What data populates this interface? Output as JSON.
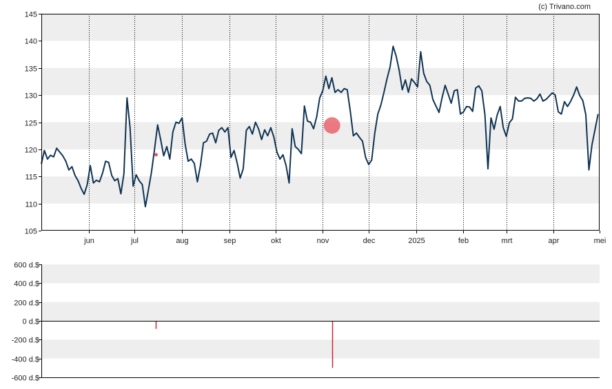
{
  "credit": "(c) Trivano.com",
  "colors": {
    "band": "#eeeeee",
    "price_line": "#0f3352",
    "marker": "#e8505b",
    "volume_bar": "#cc2233",
    "axis": "#000000",
    "zero_line": "#000000"
  },
  "chart_data": [
    {
      "type": "line",
      "name": "price",
      "ylim": [
        105,
        145
      ],
      "yticks": [
        105,
        110,
        115,
        120,
        125,
        130,
        135,
        140,
        145
      ],
      "x_domain": [
        "2024-05-01",
        "2025-05-01"
      ],
      "month_ticks": [
        {
          "date": "2024-06-01",
          "label": "jun"
        },
        {
          "date": "2024-07-01",
          "label": "jul"
        },
        {
          "date": "2024-08-01",
          "label": "aug"
        },
        {
          "date": "2024-09-01",
          "label": "sep"
        },
        {
          "date": "2024-10-01",
          "label": "okt"
        },
        {
          "date": "2024-11-01",
          "label": "nov"
        },
        {
          "date": "2024-12-01",
          "label": "dec"
        },
        {
          "date": "2025-01-01",
          "label": "2025"
        },
        {
          "date": "2025-02-01",
          "label": "feb"
        },
        {
          "date": "2025-03-01",
          "label": "mrt"
        },
        {
          "date": "2025-04-01",
          "label": "apr"
        },
        {
          "date": "2025-05-01",
          "label": "mei"
        }
      ],
      "grid": "alternating horizontal bands, dotted vertical lines at month ticks",
      "series": [
        {
          "points": [
            [
              "2024-05-01",
              117.3
            ],
            [
              "2024-05-03",
              119.8
            ],
            [
              "2024-05-05",
              118.2
            ],
            [
              "2024-05-07",
              118.9
            ],
            [
              "2024-05-09",
              118.6
            ],
            [
              "2024-05-11",
              120.2
            ],
            [
              "2024-05-13",
              119.5
            ],
            [
              "2024-05-15",
              118.8
            ],
            [
              "2024-05-17",
              117.8
            ],
            [
              "2024-05-19",
              116.2
            ],
            [
              "2024-05-21",
              116.8
            ],
            [
              "2024-05-23",
              115.2
            ],
            [
              "2024-05-25",
              114.2
            ],
            [
              "2024-05-27",
              112.8
            ],
            [
              "2024-05-29",
              111.7
            ],
            [
              "2024-05-31",
              113.5
            ],
            [
              "2024-06-02",
              117.0
            ],
            [
              "2024-06-04",
              113.8
            ],
            [
              "2024-06-06",
              114.3
            ],
            [
              "2024-06-08",
              114.0
            ],
            [
              "2024-06-10",
              115.6
            ],
            [
              "2024-06-12",
              117.8
            ],
            [
              "2024-06-14",
              117.6
            ],
            [
              "2024-06-16",
              115.2
            ],
            [
              "2024-06-18",
              114.2
            ],
            [
              "2024-06-20",
              114.6
            ],
            [
              "2024-06-22",
              111.8
            ],
            [
              "2024-06-24",
              115.5
            ],
            [
              "2024-06-26",
              129.5
            ],
            [
              "2024-06-28",
              124.0
            ],
            [
              "2024-06-30",
              113.2
            ],
            [
              "2024-07-02",
              115.3
            ],
            [
              "2024-07-04",
              114.2
            ],
            [
              "2024-07-06",
              113.5
            ],
            [
              "2024-07-08",
              109.4
            ],
            [
              "2024-07-10",
              112.5
            ],
            [
              "2024-07-12",
              115.8
            ],
            [
              "2024-07-14",
              120.0
            ],
            [
              "2024-07-16",
              124.5
            ],
            [
              "2024-07-18",
              121.8
            ],
            [
              "2024-07-20",
              118.8
            ],
            [
              "2024-07-22",
              120.5
            ],
            [
              "2024-07-24",
              118.2
            ],
            [
              "2024-07-26",
              123.2
            ],
            [
              "2024-07-28",
              125.0
            ],
            [
              "2024-07-30",
              124.8
            ],
            [
              "2024-08-01",
              125.8
            ],
            [
              "2024-08-03",
              121.0
            ],
            [
              "2024-08-05",
              117.8
            ],
            [
              "2024-08-07",
              118.2
            ],
            [
              "2024-08-09",
              117.4
            ],
            [
              "2024-08-11",
              114.0
            ],
            [
              "2024-08-13",
              117.0
            ],
            [
              "2024-08-15",
              121.2
            ],
            [
              "2024-08-17",
              121.5
            ],
            [
              "2024-08-19",
              122.8
            ],
            [
              "2024-08-21",
              123.0
            ],
            [
              "2024-08-23",
              121.2
            ],
            [
              "2024-08-25",
              123.5
            ],
            [
              "2024-08-27",
              124.0
            ],
            [
              "2024-08-29",
              123.2
            ],
            [
              "2024-08-31",
              124.0
            ],
            [
              "2024-09-02",
              118.5
            ],
            [
              "2024-09-04",
              119.8
            ],
            [
              "2024-09-06",
              117.5
            ],
            [
              "2024-09-08",
              114.7
            ],
            [
              "2024-09-10",
              116.4
            ],
            [
              "2024-09-12",
              123.5
            ],
            [
              "2024-09-14",
              124.2
            ],
            [
              "2024-09-16",
              122.8
            ],
            [
              "2024-09-18",
              125.0
            ],
            [
              "2024-09-20",
              123.8
            ],
            [
              "2024-09-22",
              121.8
            ],
            [
              "2024-09-24",
              123.6
            ],
            [
              "2024-09-26",
              122.5
            ],
            [
              "2024-09-28",
              124.0
            ],
            [
              "2024-09-30",
              122.3
            ],
            [
              "2024-10-02",
              119.5
            ],
            [
              "2024-10-04",
              118.2
            ],
            [
              "2024-10-06",
              119.0
            ],
            [
              "2024-10-08",
              117.0
            ],
            [
              "2024-10-10",
              113.8
            ],
            [
              "2024-10-12",
              123.8
            ],
            [
              "2024-10-14",
              120.5
            ],
            [
              "2024-10-16",
              120.0
            ],
            [
              "2024-10-18",
              119.2
            ],
            [
              "2024-10-20",
              128.0
            ],
            [
              "2024-10-22",
              125.2
            ],
            [
              "2024-10-24",
              125.0
            ],
            [
              "2024-10-26",
              123.8
            ],
            [
              "2024-10-28",
              126.0
            ],
            [
              "2024-10-30",
              129.5
            ],
            [
              "2024-11-01",
              130.8
            ],
            [
              "2024-11-03",
              133.5
            ],
            [
              "2024-11-05",
              131.2
            ],
            [
              "2024-11-07",
              133.2
            ],
            [
              "2024-11-09",
              130.5
            ],
            [
              "2024-11-11",
              131.0
            ],
            [
              "2024-11-13",
              130.5
            ],
            [
              "2024-11-15",
              131.2
            ],
            [
              "2024-11-17",
              131.0
            ],
            [
              "2024-11-19",
              127.0
            ],
            [
              "2024-11-21",
              122.5
            ],
            [
              "2024-11-23",
              123.0
            ],
            [
              "2024-11-25",
              122.2
            ],
            [
              "2024-11-27",
              121.5
            ],
            [
              "2024-11-29",
              118.5
            ],
            [
              "2024-12-01",
              117.2
            ],
            [
              "2024-12-03",
              118.0
            ],
            [
              "2024-12-05",
              123.0
            ],
            [
              "2024-12-07",
              126.5
            ],
            [
              "2024-12-09",
              128.2
            ],
            [
              "2024-12-11",
              130.5
            ],
            [
              "2024-12-13",
              133.0
            ],
            [
              "2024-12-15",
              135.2
            ],
            [
              "2024-12-17",
              139.0
            ],
            [
              "2024-12-19",
              137.2
            ],
            [
              "2024-12-21",
              134.5
            ],
            [
              "2024-12-23",
              131.0
            ],
            [
              "2024-12-25",
              132.8
            ],
            [
              "2024-12-27",
              130.5
            ],
            [
              "2024-12-29",
              133.0
            ],
            [
              "2024-12-31",
              132.3
            ],
            [
              "2025-01-02",
              131.5
            ],
            [
              "2025-01-04",
              138.0
            ],
            [
              "2025-01-06",
              134.0
            ],
            [
              "2025-01-08",
              132.5
            ],
            [
              "2025-01-10",
              131.8
            ],
            [
              "2025-01-12",
              129.2
            ],
            [
              "2025-01-14",
              128.0
            ],
            [
              "2025-01-16",
              126.8
            ],
            [
              "2025-01-18",
              129.5
            ],
            [
              "2025-01-20",
              131.8
            ],
            [
              "2025-01-22",
              130.2
            ],
            [
              "2025-01-24",
              128.5
            ],
            [
              "2025-01-26",
              130.8
            ],
            [
              "2025-01-28",
              131.0
            ],
            [
              "2025-01-30",
              126.5
            ],
            [
              "2025-02-01",
              126.9
            ],
            [
              "2025-02-03",
              127.9
            ],
            [
              "2025-02-05",
              127.8
            ],
            [
              "2025-02-07",
              127.0
            ],
            [
              "2025-02-09",
              131.3
            ],
            [
              "2025-02-11",
              131.7
            ],
            [
              "2025-02-13",
              130.8
            ],
            [
              "2025-02-15",
              126.4
            ],
            [
              "2025-02-17",
              116.4
            ],
            [
              "2025-02-19",
              125.8
            ],
            [
              "2025-02-21",
              123.7
            ],
            [
              "2025-02-23",
              126.3
            ],
            [
              "2025-02-25",
              127.9
            ],
            [
              "2025-02-27",
              124.0
            ],
            [
              "2025-03-01",
              122.4
            ],
            [
              "2025-03-03",
              124.9
            ],
            [
              "2025-03-05",
              125.6
            ],
            [
              "2025-03-07",
              129.6
            ],
            [
              "2025-03-09",
              128.9
            ],
            [
              "2025-03-11",
              128.9
            ],
            [
              "2025-03-13",
              129.4
            ],
            [
              "2025-03-15",
              129.5
            ],
            [
              "2025-03-17",
              129.4
            ],
            [
              "2025-03-19",
              128.9
            ],
            [
              "2025-03-21",
              129.3
            ],
            [
              "2025-03-23",
              130.2
            ],
            [
              "2025-03-25",
              128.9
            ],
            [
              "2025-03-27",
              129.2
            ],
            [
              "2025-03-29",
              129.8
            ],
            [
              "2025-03-31",
              130.4
            ],
            [
              "2025-04-02",
              130.0
            ],
            [
              "2025-04-04",
              126.9
            ],
            [
              "2025-04-06",
              126.5
            ],
            [
              "2025-04-08",
              128.8
            ],
            [
              "2025-04-10",
              127.9
            ],
            [
              "2025-04-12",
              128.8
            ],
            [
              "2025-04-14",
              130.0
            ],
            [
              "2025-04-16",
              131.5
            ],
            [
              "2025-04-18",
              129.9
            ],
            [
              "2025-04-20",
              129.0
            ],
            [
              "2025-04-22",
              126.4
            ],
            [
              "2025-04-24",
              116.2
            ],
            [
              "2025-04-26",
              120.8
            ],
            [
              "2025-04-28",
              123.6
            ],
            [
              "2025-04-30",
              126.5
            ]
          ]
        }
      ],
      "markers": [
        {
          "date": "2024-07-15",
          "value": 119.0,
          "size": "small"
        },
        {
          "date": "2024-11-07",
          "value": 124.4,
          "size": "large"
        }
      ]
    },
    {
      "type": "bar",
      "name": "volume",
      "ylim": [
        -600,
        600
      ],
      "yticks": [
        600,
        400,
        200,
        0,
        -200,
        -400,
        -600
      ],
      "ytick_labels": [
        "600 d.$",
        "400 d.$",
        "200 d.$",
        "0 d.$",
        "-200 d.$",
        "-400 d.$",
        "-600 d.$"
      ],
      "bars": [
        {
          "date": "2024-07-15",
          "value": -85
        },
        {
          "date": "2024-11-07",
          "value": -500
        }
      ]
    }
  ]
}
